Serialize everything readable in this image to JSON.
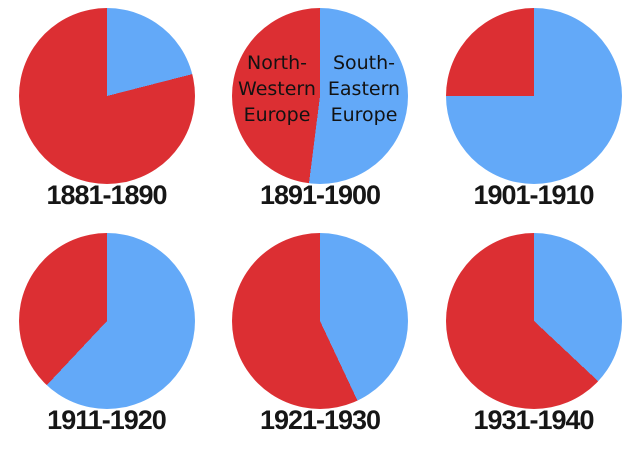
{
  "page": {
    "background": "#ffffff",
    "description_colors": {
      "north_western_red": "#dc2f33",
      "south_eastern_blue": "#63a9f8",
      "label_text": "#161616",
      "label_halo": "#ffffff"
    }
  },
  "legend": {
    "north_western": {
      "lines": [
        "North-",
        "Western",
        "Europe"
      ],
      "full": "North-Western Europe"
    },
    "south_eastern": {
      "lines": [
        "South-",
        "Eastern",
        "Europe"
      ],
      "full": "South-Eastern Europe"
    }
  },
  "chart_data": [
    {
      "type": "pie",
      "title": "1881-1890",
      "categories": [
        "South-Eastern Europe",
        "North-Western Europe"
      ],
      "values": [
        21,
        79
      ],
      "colors": [
        "#63a9f8",
        "#dc2f33"
      ],
      "start_angle_deg": 0,
      "direction": "clockwise",
      "slice_labels_visible": false
    },
    {
      "type": "pie",
      "title": "1891-1900",
      "categories": [
        "South-Eastern Europe",
        "North-Western Europe"
      ],
      "values": [
        52,
        48
      ],
      "colors": [
        "#63a9f8",
        "#dc2f33"
      ],
      "start_angle_deg": 0,
      "direction": "clockwise",
      "slice_labels_visible": true
    },
    {
      "type": "pie",
      "title": "1901-1910",
      "categories": [
        "South-Eastern Europe",
        "North-Western Europe"
      ],
      "values": [
        75,
        25
      ],
      "colors": [
        "#63a9f8",
        "#dc2f33"
      ],
      "start_angle_deg": 0,
      "direction": "clockwise",
      "slice_labels_visible": false
    },
    {
      "type": "pie",
      "title": "1911-1920",
      "categories": [
        "South-Eastern Europe",
        "North-Western Europe"
      ],
      "values": [
        62,
        38
      ],
      "colors": [
        "#63a9f8",
        "#dc2f33"
      ],
      "start_angle_deg": 0,
      "direction": "clockwise",
      "slice_labels_visible": false
    },
    {
      "type": "pie",
      "title": "1921-1930",
      "categories": [
        "South-Eastern Europe",
        "North-Western Europe"
      ],
      "values": [
        43,
        57
      ],
      "colors": [
        "#63a9f8",
        "#dc2f33"
      ],
      "start_angle_deg": 0,
      "direction": "clockwise",
      "slice_labels_visible": false
    },
    {
      "type": "pie",
      "title": "1931-1940",
      "categories": [
        "South-Eastern Europe",
        "North-Western Europe"
      ],
      "values": [
        37,
        63
      ],
      "colors": [
        "#63a9f8",
        "#dc2f33"
      ],
      "start_angle_deg": 0,
      "direction": "clockwise",
      "slice_labels_visible": false
    }
  ]
}
